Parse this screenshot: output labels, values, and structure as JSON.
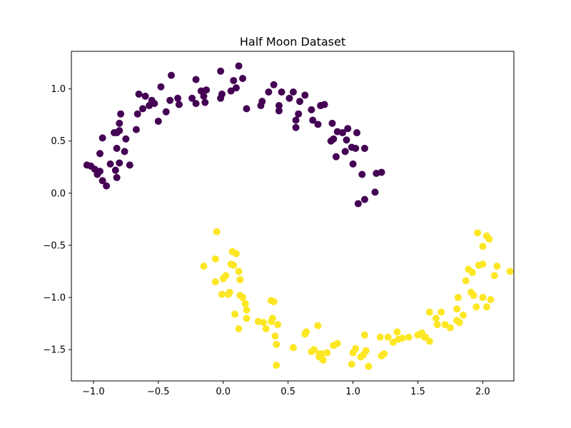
{
  "chart_data": {
    "type": "scatter",
    "title": "Half Moon Dataset",
    "xlabel": "",
    "ylabel": "",
    "xlim": [
      -1.17,
      2.24
    ],
    "ylim": [
      -1.8,
      1.36
    ],
    "x_ticks": [
      -1.0,
      -0.5,
      0.0,
      0.5,
      1.0,
      1.5,
      2.0
    ],
    "x_tick_labels": [
      "−1.0",
      "−0.5",
      "0.0",
      "0.5",
      "1.0",
      "1.5",
      "2.0"
    ],
    "y_ticks": [
      -1.5,
      -1.0,
      -0.5,
      0.0,
      0.5,
      1.0
    ],
    "y_tick_labels": [
      "−1.5",
      "−1.0",
      "−0.5",
      "0.0",
      "0.5",
      "1.0"
    ],
    "grid": false,
    "legend": "none",
    "series": [
      {
        "color": "#440154",
        "points": [
          [
            -1.05,
            0.27
          ],
          [
            -1.02,
            0.26
          ],
          [
            -0.99,
            0.23
          ],
          [
            -0.97,
            0.18
          ],
          [
            -0.95,
            0.21
          ],
          [
            -0.93,
            0.12
          ],
          [
            -0.9,
            0.07
          ],
          [
            -0.95,
            0.38
          ],
          [
            -0.93,
            0.53
          ],
          [
            -0.87,
            0.28
          ],
          [
            -0.84,
            0.58
          ],
          [
            -0.82,
            0.58
          ],
          [
            -0.8,
            0.6
          ],
          [
            -0.82,
            0.43
          ],
          [
            -0.8,
            0.67
          ],
          [
            -0.79,
            0.76
          ],
          [
            -0.8,
            0.29
          ],
          [
            -0.82,
            0.15
          ],
          [
            -0.83,
            0.22
          ],
          [
            -0.76,
            0.4
          ],
          [
            -0.75,
            0.52
          ],
          [
            -0.72,
            0.27
          ],
          [
            -0.67,
            0.61
          ],
          [
            -0.66,
            0.76
          ],
          [
            -0.65,
            0.95
          ],
          [
            -0.62,
            0.81
          ],
          [
            -0.6,
            0.93
          ],
          [
            -0.57,
            0.84
          ],
          [
            -0.55,
            0.89
          ],
          [
            -0.53,
            0.86
          ],
          [
            -0.5,
            0.69
          ],
          [
            -0.48,
            1.02
          ],
          [
            -0.44,
            0.78
          ],
          [
            -0.41,
            0.89
          ],
          [
            -0.4,
            1.13
          ],
          [
            -0.35,
            0.91
          ],
          [
            -0.34,
            0.85
          ],
          [
            -0.24,
            0.91
          ],
          [
            -0.21,
            0.86
          ],
          [
            -0.21,
            1.09
          ],
          [
            -0.17,
            0.98
          ],
          [
            -0.15,
            0.93
          ],
          [
            -0.14,
            0.87
          ],
          [
            -0.13,
            0.99
          ],
          [
            -0.02,
            1.17
          ],
          [
            -0.01,
            0.95
          ],
          [
            -0.02,
            0.91
          ],
          [
            0.06,
            0.98
          ],
          [
            0.08,
            1.08
          ],
          [
            0.1,
            1.01
          ],
          [
            0.12,
            1.22
          ],
          [
            0.15,
            1.1
          ],
          [
            0.18,
            0.81
          ],
          [
            0.29,
            0.84
          ],
          [
            0.3,
            0.88
          ],
          [
            0.35,
            0.97
          ],
          [
            0.39,
            1.04
          ],
          [
            0.43,
            0.79
          ],
          [
            0.43,
            0.84
          ],
          [
            0.45,
            0.97
          ],
          [
            0.51,
            0.91
          ],
          [
            0.54,
            0.97
          ],
          [
            0.56,
            0.7
          ],
          [
            0.56,
            0.63
          ],
          [
            0.58,
            0.76
          ],
          [
            0.59,
            0.88
          ],
          [
            0.63,
            0.94
          ],
          [
            0.68,
            0.8
          ],
          [
            0.69,
            0.7
          ],
          [
            0.73,
            0.66
          ],
          [
            0.75,
            0.84
          ],
          [
            0.78,
            0.85
          ],
          [
            0.84,
            0.67
          ],
          [
            0.83,
            0.5
          ],
          [
            0.85,
            0.52
          ],
          [
            0.87,
            0.35
          ],
          [
            0.88,
            0.59
          ],
          [
            0.92,
            0.58
          ],
          [
            0.94,
            0.4
          ],
          [
            0.95,
            0.51
          ],
          [
            0.96,
            0.62
          ],
          [
            0.99,
            0.44
          ],
          [
            1.0,
            0.28
          ],
          [
            1.02,
            0.43
          ],
          [
            1.03,
            0.58
          ],
          [
            1.04,
            -0.1
          ],
          [
            1.07,
            0.18
          ],
          [
            1.09,
            -0.06
          ],
          [
            1.09,
            0.43
          ],
          [
            1.17,
            0.01
          ],
          [
            1.18,
            0.19
          ],
          [
            1.22,
            0.2
          ]
        ]
      },
      {
        "color": "#fde725",
        "points": [
          [
            -0.05,
            -0.37
          ],
          [
            -0.15,
            -0.7
          ],
          [
            -0.06,
            -0.63
          ],
          [
            -0.06,
            -0.85
          ],
          [
            -0.01,
            -0.97
          ],
          [
            0.0,
            -0.82
          ],
          [
            0.02,
            -0.79
          ],
          [
            0.04,
            -0.97
          ],
          [
            0.05,
            -0.95
          ],
          [
            0.06,
            -0.68
          ],
          [
            0.07,
            -0.56
          ],
          [
            0.08,
            -0.69
          ],
          [
            0.1,
            -0.58
          ],
          [
            0.09,
            -1.16
          ],
          [
            0.12,
            -0.75
          ],
          [
            0.12,
            -1.3
          ],
          [
            0.13,
            -0.83
          ],
          [
            0.13,
            -0.98
          ],
          [
            0.15,
            -1.0
          ],
          [
            0.17,
            -1.06
          ],
          [
            0.18,
            -1.12
          ],
          [
            0.18,
            -1.2
          ],
          [
            0.27,
            -1.23
          ],
          [
            0.31,
            -1.24
          ],
          [
            0.33,
            -1.3
          ],
          [
            0.37,
            -1.23
          ],
          [
            0.37,
            -1.03
          ],
          [
            0.38,
            -1.2
          ],
          [
            0.39,
            -1.04
          ],
          [
            0.4,
            -1.37
          ],
          [
            0.41,
            -1.45
          ],
          [
            0.42,
            -1.26
          ],
          [
            0.41,
            -1.65
          ],
          [
            0.54,
            -1.48
          ],
          [
            0.63,
            -1.35
          ],
          [
            0.64,
            -1.33
          ],
          [
            0.68,
            -1.52
          ],
          [
            0.7,
            -1.5
          ],
          [
            0.73,
            -1.27
          ],
          [
            0.74,
            -1.54
          ],
          [
            0.74,
            -1.57
          ],
          [
            0.76,
            -1.54
          ],
          [
            0.77,
            -1.6
          ],
          [
            0.8,
            -1.53
          ],
          [
            0.85,
            -1.46
          ],
          [
            0.88,
            -1.44
          ],
          [
            0.99,
            -1.64
          ],
          [
            1.0,
            -1.53
          ],
          [
            1.02,
            -1.49
          ],
          [
            1.06,
            -1.57
          ],
          [
            1.08,
            -1.55
          ],
          [
            1.09,
            -1.36
          ],
          [
            1.1,
            -1.51
          ],
          [
            1.12,
            -1.66
          ],
          [
            1.21,
            -1.38
          ],
          [
            1.22,
            -1.56
          ],
          [
            1.24,
            -1.54
          ],
          [
            1.27,
            -1.38
          ],
          [
            1.31,
            -1.43
          ],
          [
            1.34,
            -1.33
          ],
          [
            1.35,
            -1.4
          ],
          [
            1.38,
            -1.39
          ],
          [
            1.43,
            -1.38
          ],
          [
            1.5,
            -1.36
          ],
          [
            1.53,
            -1.34
          ],
          [
            1.55,
            -1.38
          ],
          [
            1.56,
            -1.38
          ],
          [
            1.59,
            -1.42
          ],
          [
            1.59,
            -1.14
          ],
          [
            1.64,
            -1.2
          ],
          [
            1.65,
            -1.26
          ],
          [
            1.68,
            -1.14
          ],
          [
            1.71,
            -1.26
          ],
          [
            1.75,
            -1.29
          ],
          [
            1.8,
            -1.22
          ],
          [
            1.8,
            -1.11
          ],
          [
            1.81,
            -1.0
          ],
          [
            1.82,
            -1.24
          ],
          [
            1.85,
            -1.17
          ],
          [
            1.87,
            -0.84
          ],
          [
            1.89,
            -0.73
          ],
          [
            1.91,
            -0.95
          ],
          [
            1.92,
            -0.76
          ],
          [
            1.93,
            -0.98
          ],
          [
            1.95,
            -1.09
          ],
          [
            1.96,
            -0.38
          ],
          [
            1.97,
            -0.69
          ],
          [
            2.0,
            -0.68
          ],
          [
            2.0,
            -1.0
          ],
          [
            2.0,
            -0.51
          ],
          [
            2.03,
            -0.41
          ],
          [
            2.03,
            -1.09
          ],
          [
            2.05,
            -0.44
          ],
          [
            2.06,
            -1.02
          ],
          [
            2.09,
            -0.79
          ],
          [
            2.11,
            -0.7
          ],
          [
            2.21,
            -0.75
          ]
        ]
      }
    ]
  }
}
